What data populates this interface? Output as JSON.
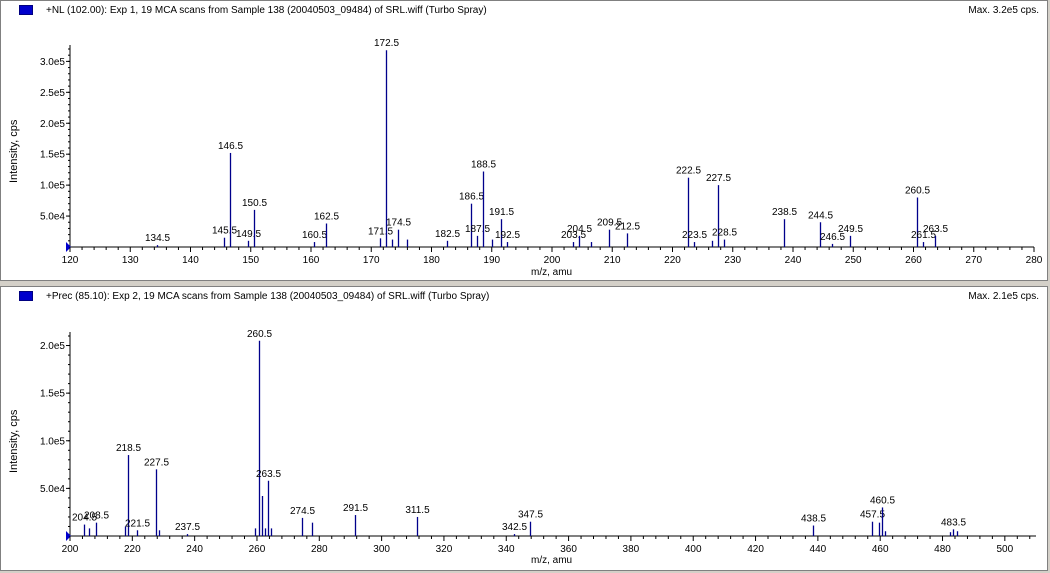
{
  "panels": [
    {
      "title": "+NL (102.00): Exp 1, 19 MCA scans from Sample 138 (20040503_09484) of SRL.wiff (Turbo Spray)",
      "max_label": "Max. 3.2e5 cps.",
      "ylabel": "Intensity, cps",
      "xlabel": "m/z, amu"
    },
    {
      "title": "+Prec (85.10): Exp 2, 19 MCA scans from Sample 138 (20040503_09484) of SRL.wiff (Turbo Spray)",
      "max_label": "Max. 2.1e5 cps.",
      "ylabel": "Intensity, cps",
      "xlabel": "m/z, amu"
    }
  ],
  "colors": {
    "peak": "#00008b",
    "axis": "#000000",
    "marker": "#0000cc"
  },
  "chart_data": [
    {
      "type": "bar",
      "title": "+NL (102.00): Exp 1, 19 MCA scans from Sample 138 (20040503_09484) of SRL.wiff (Turbo Spray)",
      "xlabel": "m/z, amu",
      "ylabel": "Intensity, cps",
      "xlim": [
        120,
        280
      ],
      "ylim": [
        0,
        320000
      ],
      "xticks": [
        "120",
        "130",
        "140",
        "150",
        "160",
        "170",
        "180",
        "190",
        "200",
        "210",
        "220",
        "230",
        "240",
        "250",
        "260",
        "270",
        "280"
      ],
      "yticks": [
        "5.0e4",
        "1.0e5",
        "1.5e5",
        "2.0e5",
        "2.5e5",
        "3.0e5"
      ],
      "grid": false,
      "peaks": [
        {
          "x": 134.5,
          "y": 3000,
          "label": "134.5"
        },
        {
          "x": 145.5,
          "y": 15000,
          "label": "145.5"
        },
        {
          "x": 146.5,
          "y": 152000,
          "label": "146.5"
        },
        {
          "x": 149.5,
          "y": 10000,
          "label": "149.5"
        },
        {
          "x": 150.5,
          "y": 60000,
          "label": "150.5"
        },
        {
          "x": 160.5,
          "y": 8000,
          "label": "160.5"
        },
        {
          "x": 162.5,
          "y": 38000,
          "label": "162.5"
        },
        {
          "x": 171.5,
          "y": 14000,
          "label": "171.5"
        },
        {
          "x": 172.5,
          "y": 318000,
          "label": "172.5"
        },
        {
          "x": 173.5,
          "y": 12000
        },
        {
          "x": 174.5,
          "y": 28000,
          "label": "174.5"
        },
        {
          "x": 176.0,
          "y": 12000
        },
        {
          "x": 182.5,
          "y": 10000,
          "label": "182.5"
        },
        {
          "x": 186.5,
          "y": 70000,
          "label": "186.5"
        },
        {
          "x": 187.5,
          "y": 18000,
          "label": "187.5"
        },
        {
          "x": 188.5,
          "y": 122000,
          "label": "188.5"
        },
        {
          "x": 190.0,
          "y": 12000
        },
        {
          "x": 191.5,
          "y": 45000,
          "label": "191.5"
        },
        {
          "x": 192.5,
          "y": 8000,
          "label": "192.5"
        },
        {
          "x": 203.5,
          "y": 8000,
          "label": "203.5"
        },
        {
          "x": 204.5,
          "y": 18000,
          "label": "204.5"
        },
        {
          "x": 206.5,
          "y": 8000
        },
        {
          "x": 209.5,
          "y": 28000,
          "label": "209.5"
        },
        {
          "x": 212.5,
          "y": 22000,
          "label": "212.5"
        },
        {
          "x": 222.5,
          "y": 112000,
          "label": "222.5"
        },
        {
          "x": 223.5,
          "y": 8000,
          "label": "223.5"
        },
        {
          "x": 226.5,
          "y": 10000
        },
        {
          "x": 227.5,
          "y": 100000,
          "label": "227.5"
        },
        {
          "x": 228.5,
          "y": 12000,
          "label": "228.5"
        },
        {
          "x": 238.5,
          "y": 45000,
          "label": "238.5"
        },
        {
          "x": 244.5,
          "y": 40000,
          "label": "244.5"
        },
        {
          "x": 246.5,
          "y": 5000,
          "label": "246.5"
        },
        {
          "x": 249.5,
          "y": 18000,
          "label": "249.5"
        },
        {
          "x": 260.5,
          "y": 80000,
          "label": "260.5"
        },
        {
          "x": 261.5,
          "y": 8000,
          "label": "261.5"
        },
        {
          "x": 263.5,
          "y": 18000,
          "label": "263.5"
        }
      ]
    },
    {
      "type": "bar",
      "title": "+Prec (85.10): Exp 2, 19 MCA scans from Sample 138 (20040503_09484) of SRL.wiff (Turbo Spray)",
      "xlabel": "m/z, amu",
      "ylabel": "Intensity, cps",
      "xlim": [
        200,
        510
      ],
      "ylim": [
        0,
        210000
      ],
      "xticks": [
        "200",
        "220",
        "240",
        "260",
        "280",
        "300",
        "320",
        "340",
        "360",
        "380",
        "400",
        "420",
        "440",
        "460",
        "480",
        "500"
      ],
      "yticks": [
        "5.0e4",
        "1.0e5",
        "1.5e5",
        "2.0e5"
      ],
      "grid": false,
      "peaks": [
        {
          "x": 204.5,
          "y": 12000,
          "label": "204.5"
        },
        {
          "x": 206.0,
          "y": 8000
        },
        {
          "x": 208.5,
          "y": 14000,
          "label": "208.5"
        },
        {
          "x": 217.5,
          "y": 10000
        },
        {
          "x": 218.5,
          "y": 85000,
          "label": "218.5"
        },
        {
          "x": 221.5,
          "y": 6000,
          "label": "221.5"
        },
        {
          "x": 227.5,
          "y": 70000,
          "label": "227.5"
        },
        {
          "x": 228.5,
          "y": 6000
        },
        {
          "x": 237.5,
          "y": 2000,
          "label": "237.5"
        },
        {
          "x": 259.5,
          "y": 8000
        },
        {
          "x": 260.5,
          "y": 205000,
          "label": "260.5"
        },
        {
          "x": 261.5,
          "y": 42000
        },
        {
          "x": 262.5,
          "y": 8000
        },
        {
          "x": 263.5,
          "y": 58000,
          "label": "263.5"
        },
        {
          "x": 264.5,
          "y": 8000
        },
        {
          "x": 274.5,
          "y": 19000,
          "label": "274.5"
        },
        {
          "x": 277.5,
          "y": 14000
        },
        {
          "x": 291.5,
          "y": 22000,
          "label": "291.5"
        },
        {
          "x": 311.5,
          "y": 20000,
          "label": "311.5"
        },
        {
          "x": 342.5,
          "y": 2000,
          "label": "342.5"
        },
        {
          "x": 347.5,
          "y": 15000,
          "label": "347.5"
        },
        {
          "x": 438.5,
          "y": 11000,
          "label": "438.5"
        },
        {
          "x": 457.5,
          "y": 15000,
          "label": "457.5"
        },
        {
          "x": 459.5,
          "y": 14000
        },
        {
          "x": 460.5,
          "y": 30000,
          "label": "460.5"
        },
        {
          "x": 461.5,
          "y": 5000
        },
        {
          "x": 482.5,
          "y": 4000
        },
        {
          "x": 483.5,
          "y": 7000,
          "label": "483.5"
        },
        {
          "x": 484.5,
          "y": 5000
        }
      ]
    }
  ]
}
